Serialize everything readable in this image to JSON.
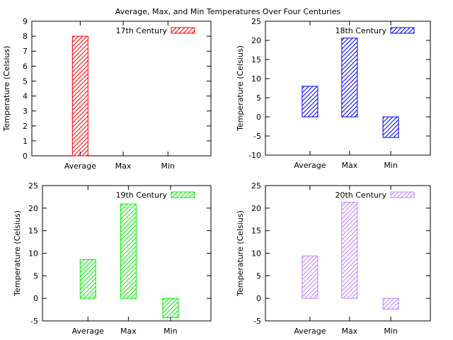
{
  "title": "Average, Max, and Min Temperatures Over Four Centuries",
  "chart_data": [
    {
      "type": "bar",
      "categories": [
        "Average",
        "Max",
        "Min"
      ],
      "series": [
        {
          "name": "17th Century",
          "values": [
            8.0,
            0,
            0
          ],
          "color": "#ff0000"
        }
      ],
      "ylabel": "Temperature (Celsius)",
      "ylim": [
        0,
        9
      ],
      "yticks": [
        0,
        1,
        2,
        3,
        4,
        5,
        6,
        7,
        8,
        9
      ],
      "legend": "top-right",
      "grid": false
    },
    {
      "type": "bar",
      "categories": [
        "Average",
        "Max",
        "Min"
      ],
      "series": [
        {
          "name": "18th Century",
          "values": [
            8.0,
            20.6,
            -5.4
          ],
          "color": "#0000ff"
        }
      ],
      "ylabel": "Temperature (Celsius)",
      "ylim": [
        -10,
        25
      ],
      "yticks": [
        -10,
        -5,
        0,
        5,
        10,
        15,
        20,
        25
      ],
      "legend": "top-right",
      "grid": false
    },
    {
      "type": "bar",
      "categories": [
        "Average",
        "Max",
        "Min"
      ],
      "series": [
        {
          "name": "19th Century",
          "values": [
            8.6,
            20.9,
            -4.3
          ],
          "color": "#00ee00"
        }
      ],
      "ylabel": "Temperature (Celsius)",
      "ylim": [
        -5,
        25
      ],
      "yticks": [
        -5,
        0,
        5,
        10,
        15,
        20,
        25
      ],
      "legend": "top-right",
      "grid": false
    },
    {
      "type": "bar",
      "categories": [
        "Average",
        "Max",
        "Min"
      ],
      "series": [
        {
          "name": "20th Century",
          "values": [
            9.4,
            21.3,
            -2.4
          ],
          "color": "#c080ff"
        }
      ],
      "ylabel": "Temperature (Celsius)",
      "ylim": [
        -5,
        25
      ],
      "yticks": [
        -5,
        0,
        5,
        10,
        15,
        20,
        25
      ],
      "legend": "top-right",
      "grid": false
    }
  ]
}
